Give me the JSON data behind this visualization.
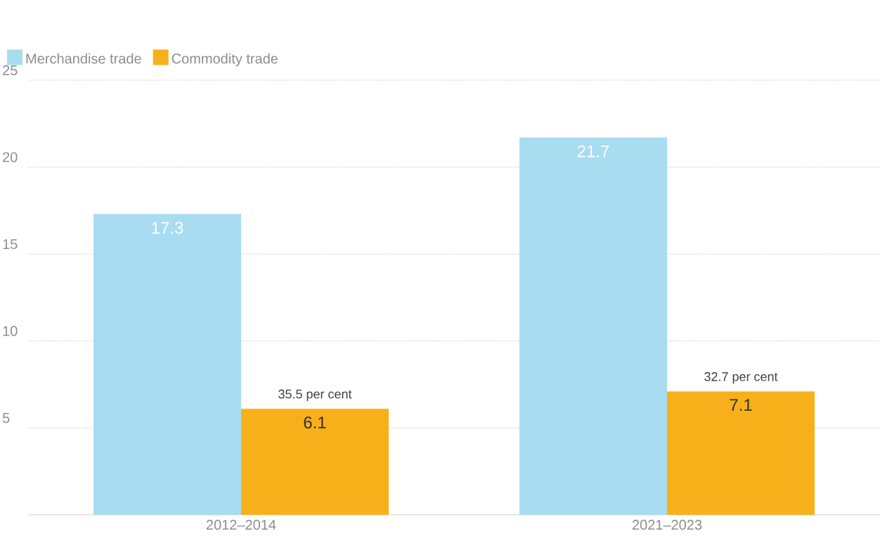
{
  "chart_data": {
    "type": "bar",
    "categories": [
      "2012–2014",
      "2021–2023"
    ],
    "series": [
      {
        "name": "Merchandise trade",
        "color": "#a8dcf0",
        "values": [
          17.3,
          21.7
        ]
      },
      {
        "name": "Commodity trade",
        "color": "#f8b01a",
        "values": [
          6.1,
          7.1
        ]
      }
    ],
    "ylim": [
      0,
      25
    ],
    "yticks": [
      5,
      10,
      15,
      20,
      25
    ],
    "grid": "y",
    "legend": "top left",
    "data_labels": true,
    "annotations": [
      "35.5 per cent",
      "32.7 per cent"
    ]
  }
}
